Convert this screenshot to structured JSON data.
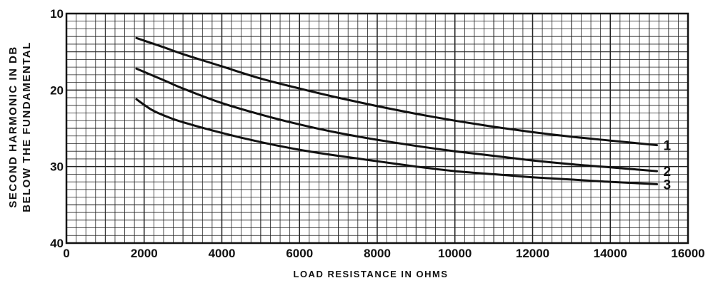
{
  "chart_data": {
    "type": "line",
    "title": "",
    "xlabel": "LOAD RESISTANCE IN OHMS",
    "ylabel": [
      "SECOND HARMONIC IN DB",
      "BELOW THE FUNDAMENTAL"
    ],
    "xlim": [
      0,
      16000
    ],
    "ylim": [
      10,
      40
    ],
    "y_inverted": true,
    "grid": true,
    "x_ticks": [
      0,
      2000,
      4000,
      6000,
      8000,
      10000,
      12000,
      14000,
      16000
    ],
    "y_ticks": [
      10,
      20,
      30,
      40
    ],
    "x_tick_labels": [
      "0",
      "2000",
      "4000",
      "6000",
      "8000",
      "10000",
      "12000",
      "14000",
      "16000"
    ],
    "y_tick_labels": [
      "10",
      "20",
      "30",
      "40"
    ],
    "series": [
      {
        "name": "1",
        "color": "#111111",
        "x": [
          1800,
          2500,
          3000,
          4000,
          5000,
          6000,
          7000,
          8000,
          9000,
          10000,
          11000,
          12000,
          13000,
          14000,
          15200
        ],
        "y": [
          13.2,
          14.4,
          15.3,
          16.9,
          18.5,
          19.8,
          21.0,
          22.1,
          23.1,
          24.0,
          24.8,
          25.5,
          26.1,
          26.6,
          27.2
        ]
      },
      {
        "name": "2",
        "color": "#111111",
        "x": [
          1800,
          2500,
          3000,
          4000,
          5000,
          6000,
          7000,
          8000,
          9000,
          10000,
          11000,
          12000,
          13000,
          14000,
          15200
        ],
        "y": [
          17.2,
          18.7,
          19.8,
          21.7,
          23.2,
          24.5,
          25.6,
          26.5,
          27.3,
          28.0,
          28.6,
          29.2,
          29.7,
          30.1,
          30.6
        ]
      },
      {
        "name": "3",
        "color": "#111111",
        "x": [
          1800,
          2200,
          2600,
          3000,
          4000,
          5000,
          6000,
          7000,
          8000,
          9000,
          10000,
          11000,
          12000,
          13000,
          14000,
          15200
        ],
        "y": [
          21.2,
          22.6,
          23.5,
          24.2,
          25.6,
          26.8,
          27.8,
          28.6,
          29.3,
          30.0,
          30.6,
          31.0,
          31.4,
          31.7,
          32.0,
          32.3
        ]
      }
    ]
  }
}
